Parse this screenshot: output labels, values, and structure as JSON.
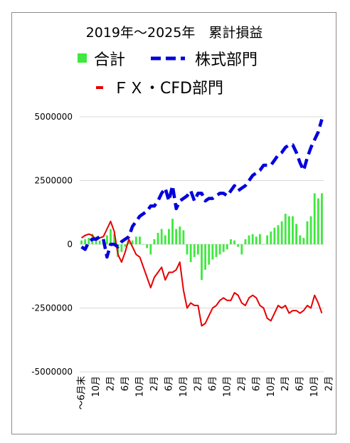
{
  "chart_data": {
    "type": "bar",
    "title": "2019年～2025年　累計損益",
    "ylim": [
      -5000000,
      5000000
    ],
    "yticks": [
      5000000,
      2500000,
      0,
      -2500000,
      -5000000
    ],
    "ytick_labels": [
      "5000000",
      "2500000",
      "0",
      "-2500000",
      "-5000000"
    ],
    "grid": true,
    "legend_position": "top",
    "x_tick_labels": [
      "～6月末",
      "10月",
      "2月",
      "6月",
      "10月",
      "2月",
      "6月",
      "10月",
      "2月",
      "6月",
      "10月",
      "2月",
      "6月",
      "10月",
      "2月",
      "6月",
      "10月",
      "2月",
      "6月",
      "10月",
      "2月",
      "6月"
    ],
    "series": [
      {
        "name": "合計",
        "type": "bar",
        "color": "#3ee83e",
        "values": [
          150000,
          200000,
          250000,
          400000,
          300000,
          150000,
          200000,
          350000,
          600000,
          400000,
          -500000,
          -300000,
          -100000,
          100000,
          150000,
          300000,
          300000,
          0,
          -150000,
          -400000,
          200000,
          450000,
          600000,
          350000,
          600000,
          1000000,
          600000,
          700000,
          550000,
          -400000,
          -700000,
          -500000,
          -400000,
          -1400000,
          -1000000,
          -800000,
          -600000,
          -500000,
          -400000,
          -300000,
          -200000,
          200000,
          150000,
          -100000,
          -400000,
          200000,
          350000,
          400000,
          300000,
          400000,
          0,
          350000,
          500000,
          650000,
          750000,
          900000,
          1200000,
          1100000,
          1100000,
          800000,
          350000,
          250000,
          900000,
          1100000,
          2000000,
          1800000,
          2000000
        ]
      },
      {
        "name": "株式部門",
        "type": "line",
        "dash": "dashed",
        "color": "#0000dd",
        "values": [
          -100000,
          -200000,
          100000,
          200000,
          200000,
          300000,
          200000,
          -500000,
          0,
          0,
          -100000,
          100000,
          200000,
          300000,
          700000,
          900000,
          1100000,
          1200000,
          1300000,
          1500000,
          1500000,
          1700000,
          2000000,
          2200000,
          1700000,
          2300000,
          1400000,
          1700000,
          1800000,
          1900000,
          2100000,
          1700000,
          2000000,
          2000000,
          1700000,
          1800000,
          1800000,
          1900000,
          2000000,
          2000000,
          1900000,
          2100000,
          2300000,
          2100000,
          2200000,
          2300000,
          2500000,
          2700000,
          2800000,
          2900000,
          3100000,
          3100000,
          3100000,
          3300000,
          3500000,
          3600000,
          3800000,
          3900000,
          3900000,
          3600000,
          3200000,
          2900000,
          3400000,
          3800000,
          4100000,
          4400000,
          4900000
        ]
      },
      {
        "name": "ＦＸ・CFD部門",
        "type": "line",
        "dash": "solid",
        "color": "#e60000",
        "values": [
          250000,
          350000,
          400000,
          350000,
          150000,
          250000,
          300000,
          600000,
          900000,
          500000,
          -400000,
          -700000,
          -300000,
          200000,
          -100000,
          -400000,
          -500000,
          -900000,
          -1300000,
          -1700000,
          -1300000,
          -1100000,
          -900000,
          -1400000,
          -1100000,
          -1100000,
          -1000000,
          -700000,
          -1800000,
          -2500000,
          -2300000,
          -2400000,
          -2400000,
          -3200000,
          -3100000,
          -2800000,
          -2500000,
          -2400000,
          -2200000,
          -2100000,
          -2200000,
          -2200000,
          -1900000,
          -2000000,
          -2300000,
          -2400000,
          -2100000,
          -2000000,
          -2100000,
          -2400000,
          -2500000,
          -2900000,
          -3000000,
          -2700000,
          -2400000,
          -2500000,
          -2400000,
          -2700000,
          -2600000,
          -2600000,
          -2700000,
          -2600000,
          -2400000,
          -2500000,
          -2000000,
          -2300000,
          -2700000
        ]
      }
    ]
  }
}
